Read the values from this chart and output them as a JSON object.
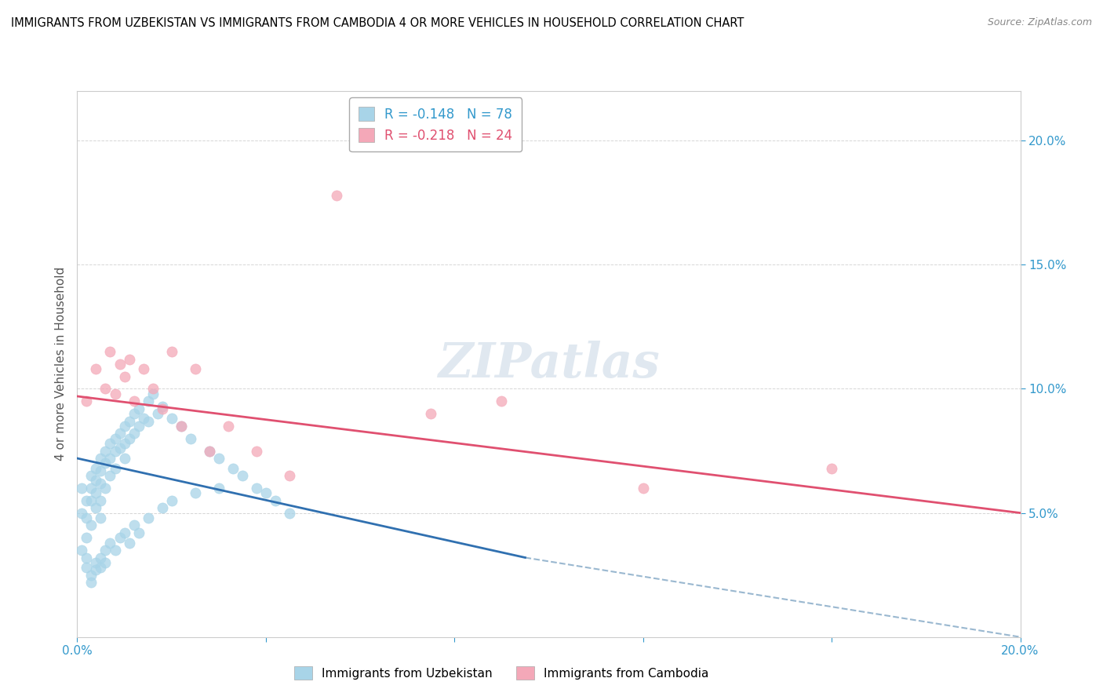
{
  "title": "IMMIGRANTS FROM UZBEKISTAN VS IMMIGRANTS FROM CAMBODIA 4 OR MORE VEHICLES IN HOUSEHOLD CORRELATION CHART",
  "source": "Source: ZipAtlas.com",
  "ylabel": "4 or more Vehicles in Household",
  "xlim": [
    0.0,
    0.2
  ],
  "ylim": [
    0.0,
    0.22
  ],
  "legend_uzb": "R = -0.148   N = 78",
  "legend_cam": "R = -0.218   N = 24",
  "uzb_color": "#a8d4e8",
  "cam_color": "#f4a8b8",
  "uzb_line_color": "#3070b0",
  "cam_line_color": "#e05070",
  "ext_line_color": "#9ab8d0",
  "uzb_scatter_x": [
    0.001,
    0.001,
    0.002,
    0.002,
    0.002,
    0.003,
    0.003,
    0.003,
    0.003,
    0.004,
    0.004,
    0.004,
    0.004,
    0.005,
    0.005,
    0.005,
    0.005,
    0.005,
    0.006,
    0.006,
    0.006,
    0.007,
    0.007,
    0.007,
    0.008,
    0.008,
    0.008,
    0.009,
    0.009,
    0.01,
    0.01,
    0.01,
    0.011,
    0.011,
    0.012,
    0.012,
    0.013,
    0.013,
    0.014,
    0.015,
    0.015,
    0.016,
    0.017,
    0.018,
    0.02,
    0.022,
    0.024,
    0.028,
    0.03,
    0.033,
    0.035,
    0.038,
    0.04,
    0.042,
    0.045,
    0.001,
    0.002,
    0.002,
    0.003,
    0.003,
    0.004,
    0.004,
    0.005,
    0.005,
    0.006,
    0.006,
    0.007,
    0.008,
    0.009,
    0.01,
    0.011,
    0.012,
    0.013,
    0.015,
    0.018,
    0.02,
    0.025,
    0.03
  ],
  "uzb_scatter_y": [
    0.06,
    0.05,
    0.055,
    0.048,
    0.04,
    0.065,
    0.06,
    0.055,
    0.045,
    0.068,
    0.063,
    0.058,
    0.052,
    0.072,
    0.067,
    0.062,
    0.055,
    0.048,
    0.075,
    0.07,
    0.06,
    0.078,
    0.072,
    0.065,
    0.08,
    0.075,
    0.068,
    0.082,
    0.076,
    0.085,
    0.078,
    0.072,
    0.087,
    0.08,
    0.09,
    0.082,
    0.092,
    0.085,
    0.088,
    0.095,
    0.087,
    0.098,
    0.09,
    0.093,
    0.088,
    0.085,
    0.08,
    0.075,
    0.072,
    0.068,
    0.065,
    0.06,
    0.058,
    0.055,
    0.05,
    0.035,
    0.032,
    0.028,
    0.025,
    0.022,
    0.03,
    0.027,
    0.032,
    0.028,
    0.035,
    0.03,
    0.038,
    0.035,
    0.04,
    0.042,
    0.038,
    0.045,
    0.042,
    0.048,
    0.052,
    0.055,
    0.058,
    0.06
  ],
  "cam_scatter_x": [
    0.002,
    0.004,
    0.006,
    0.007,
    0.008,
    0.009,
    0.01,
    0.011,
    0.012,
    0.014,
    0.016,
    0.018,
    0.02,
    0.022,
    0.025,
    0.028,
    0.032,
    0.038,
    0.045,
    0.055,
    0.075,
    0.09,
    0.12,
    0.16
  ],
  "cam_scatter_y": [
    0.095,
    0.108,
    0.1,
    0.115,
    0.098,
    0.11,
    0.105,
    0.112,
    0.095,
    0.108,
    0.1,
    0.092,
    0.115,
    0.085,
    0.108,
    0.075,
    0.085,
    0.075,
    0.065,
    0.178,
    0.09,
    0.095,
    0.06,
    0.068
  ],
  "uzb_line_x": [
    0.0,
    0.095
  ],
  "uzb_line_y": [
    0.072,
    0.032
  ],
  "cam_line_x": [
    0.0,
    0.2
  ],
  "cam_line_y": [
    0.097,
    0.05
  ],
  "ext_line_x": [
    0.095,
    0.2
  ],
  "ext_line_y": [
    0.032,
    0.0
  ]
}
